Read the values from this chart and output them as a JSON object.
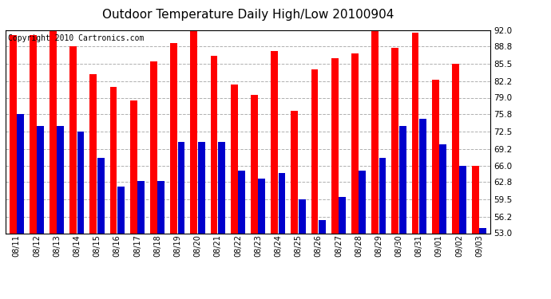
{
  "title": "Outdoor Temperature Daily High/Low 20100904",
  "copyright": "Copyright 2010 Cartronics.com",
  "dates": [
    "08/11",
    "08/12",
    "08/13",
    "08/14",
    "08/15",
    "08/16",
    "08/17",
    "08/18",
    "08/19",
    "08/20",
    "08/21",
    "08/22",
    "08/23",
    "08/24",
    "08/25",
    "08/26",
    "08/27",
    "08/28",
    "08/29",
    "08/30",
    "08/31",
    "09/01",
    "09/02",
    "09/03"
  ],
  "highs": [
    91.0,
    91.0,
    92.0,
    88.8,
    83.5,
    81.0,
    78.5,
    86.0,
    89.5,
    92.5,
    87.0,
    81.5,
    79.5,
    88.0,
    76.5,
    84.5,
    86.5,
    87.5,
    92.0,
    88.5,
    91.5,
    82.5,
    85.5,
    66.0
  ],
  "lows": [
    75.8,
    73.5,
    73.5,
    72.5,
    67.5,
    62.0,
    63.0,
    63.0,
    70.5,
    70.5,
    70.5,
    65.0,
    63.5,
    64.5,
    59.5,
    55.5,
    60.0,
    65.0,
    67.5,
    73.5,
    75.0,
    70.0,
    66.0,
    54.0
  ],
  "ylim_min": 53.0,
  "ylim_max": 92.0,
  "yticks": [
    53.0,
    56.2,
    59.5,
    62.8,
    66.0,
    69.2,
    72.5,
    75.8,
    79.0,
    82.2,
    85.5,
    88.8,
    92.0
  ],
  "bar_color_high": "#ff0000",
  "bar_color_low": "#0000cc",
  "background_color": "#ffffff",
  "grid_color": "#b0b0b0",
  "title_fontsize": 11,
  "copyright_fontsize": 7,
  "bar_width": 0.35,
  "bar_gap": 0.02
}
